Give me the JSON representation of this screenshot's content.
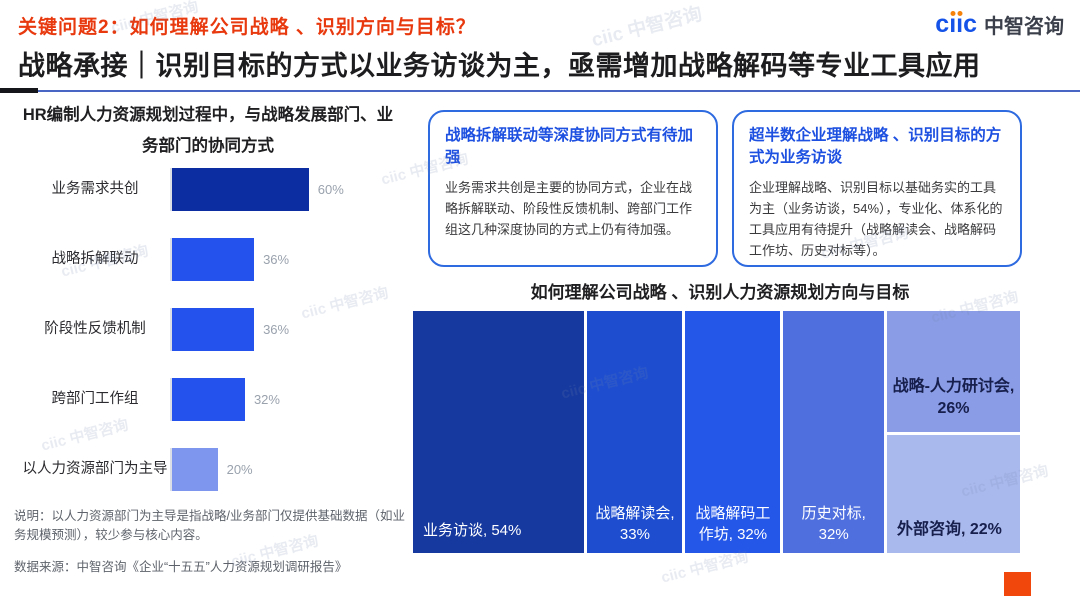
{
  "header": {
    "kicker": "关键问题2：如何理解公司战略 、识别方向与目标？",
    "title": "战略承接｜识别目标的方式以业务访谈为主，亟需增加战略解码等专业工具应用"
  },
  "logo": {
    "wordmark": "ciic",
    "name": "中智咨询"
  },
  "left_chart": {
    "title": "HR编制人力资源规划过程中，与战略发展部门、业务部门的协同方式",
    "note": "说明：以人力资源部门为主导是指战略/业务部门仅提供基础数据（如业务规模预测），较少参与核心内容。"
  },
  "insight_boxes": [
    {
      "title": "战略拆解联动等深度协同方式有待加强",
      "body": "业务需求共创是主要的协同方式，企业在战略拆解联动、阶段性反馈机制、跨部门工作组这几种深度协同的方式上仍有待加强。"
    },
    {
      "title": "超半数企业理解战略 、识别目标的方式为业务访谈",
      "body": "企业理解战略、识别目标以基础务实的工具为主（业务访谈，54%），专业化、体系化的工具应用有待提升（战略解读会、战略解码工作坊、历史对标等）。"
    }
  ],
  "right_chart": {
    "title": "如何理解公司战略 、识别人力资源规划方向与目标"
  },
  "footer": {
    "source": "数据来源：中智咨询《企业“十五五”人力资源规划调研报告》"
  },
  "watermark": {
    "text": "ciic 中智咨询"
  },
  "colors": {
    "kicker_red": "#e8380d",
    "box_border_blue": "#2e6ae0",
    "box_title_blue": "#1d50e0",
    "orange_square": "#f2470c",
    "logo_blue": "#1553e8"
  },
  "chart_data": [
    {
      "type": "bar",
      "orientation": "horizontal",
      "title": "HR编制人力资源规划过程中，与战略发展部门、业务部门的协同方式",
      "categories": [
        "业务需求共创",
        "战略拆解联动",
        "阶段性反馈机制",
        "跨部门工作组",
        "以人力资源部门为主导"
      ],
      "values": [
        60,
        36,
        36,
        32,
        20
      ],
      "unit": "%",
      "colors": [
        "#0c2da2",
        "#2353ec",
        "#2353ec",
        "#2353ec",
        "#7e96ee"
      ],
      "xlim": [
        0,
        100
      ],
      "grid": false,
      "value_labels": "outside-right"
    },
    {
      "type": "treemap",
      "title": "如何理解公司战略 、识别人力资源规划方向与目标",
      "labels": [
        "业务访谈",
        "战略解读会",
        "战略解码工作坊",
        "历史对标",
        "战略-人力研讨会",
        "外部咨询"
      ],
      "values": [
        54,
        33,
        32,
        32,
        26,
        22
      ],
      "unit": "%",
      "colors": [
        "#16399f",
        "#1e4ecf",
        "#2456e8",
        "#4f6fdf",
        "#8a9ce5",
        "#aab9ed"
      ],
      "text_colors": [
        "#ffffff",
        "#ffffff",
        "#ffffff",
        "#ffffff",
        "#171f4c",
        "#171f4c"
      ],
      "column_weights": [
        165,
        97,
        97,
        103,
        145
      ],
      "last_column_split": [
        0.52,
        0.48
      ],
      "label_format": "{label}, {value}%"
    }
  ]
}
